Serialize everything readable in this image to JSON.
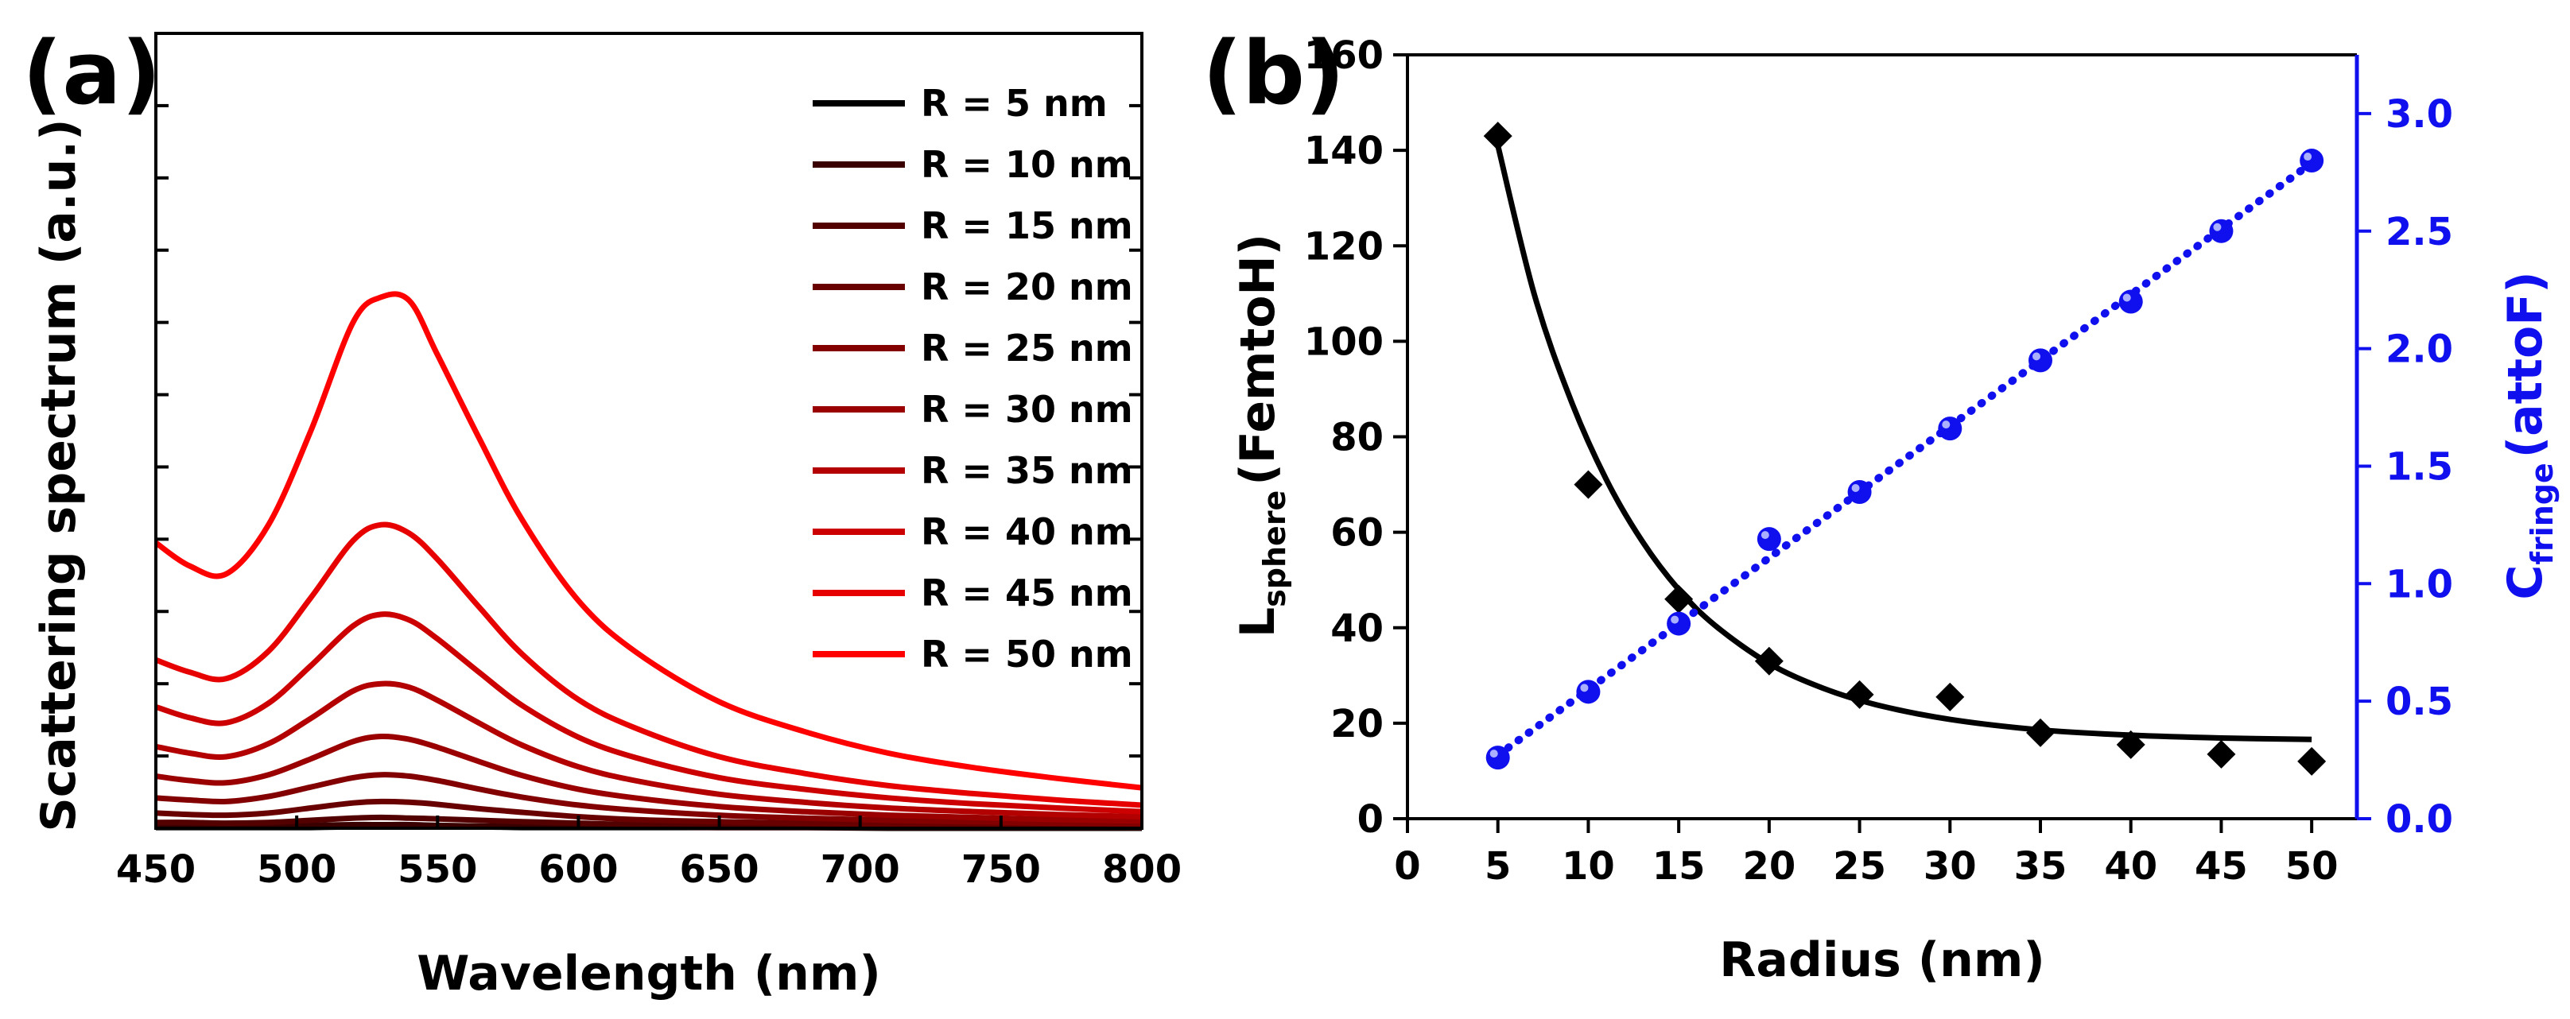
{
  "chart_data": [
    {
      "panel": "(a)",
      "type": "line",
      "title": "",
      "xlabel": "Wavelength (nm)",
      "ylabel": "Scattering spectrum (a.u.)",
      "xlim": [
        450,
        800
      ],
      "ylim": [
        0,
        110
      ],
      "xticks": [
        450,
        500,
        550,
        600,
        650,
        700,
        750,
        800
      ],
      "yticks_unlabeled": [
        10,
        20,
        30,
        40,
        50,
        60,
        70,
        80,
        90,
        100,
        110
      ],
      "x": [
        450,
        462,
        475,
        490,
        505,
        520,
        530,
        540,
        550,
        565,
        580,
        600,
        620,
        650,
        680,
        710,
        740,
        770,
        800
      ],
      "legend_position": "top-right",
      "series": [
        {
          "name": "R = 5 nm",
          "color": "#000000",
          "peak_x": 520,
          "values": [
            0.1,
            0.1,
            0.1,
            0.1,
            0.1,
            0.2,
            0.2,
            0.2,
            0.2,
            0.2,
            0.1,
            0.1,
            0.1,
            0.1,
            0.1,
            0.0,
            0.0,
            0.0,
            0.0
          ]
        },
        {
          "name": "R = 10 nm",
          "color": "#3a0000",
          "peak_x": 520,
          "values": [
            0.3,
            0.3,
            0.2,
            0.3,
            0.4,
            0.5,
            0.5,
            0.5,
            0.4,
            0.3,
            0.3,
            0.2,
            0.2,
            0.1,
            0.1,
            0.1,
            0.1,
            0.1,
            0.1
          ]
        },
        {
          "name": "R = 15 nm",
          "color": "#520000",
          "peak_x": 522,
          "values": [
            0.8,
            0.8,
            0.7,
            0.8,
            1.1,
            1.4,
            1.5,
            1.4,
            1.3,
            1.1,
            0.9,
            0.7,
            0.5,
            0.4,
            0.3,
            0.2,
            0.2,
            0.2,
            0.1
          ]
        },
        {
          "name": "R = 20 nm",
          "color": "#680000",
          "peak_x": 524,
          "values": [
            2.1,
            1.9,
            1.8,
            2.1,
            2.8,
            3.5,
            3.7,
            3.6,
            3.3,
            2.7,
            2.2,
            1.6,
            1.2,
            0.9,
            0.7,
            0.5,
            0.4,
            0.3,
            0.3
          ]
        },
        {
          "name": "R = 25 nm",
          "color": "#820000",
          "peak_x": 525,
          "values": [
            4.2,
            3.9,
            3.7,
            4.4,
            5.7,
            7.0,
            7.4,
            7.2,
            6.6,
            5.4,
            4.3,
            3.2,
            2.5,
            1.8,
            1.4,
            1.1,
            0.9,
            0.7,
            0.6
          ]
        },
        {
          "name": "R = 30 nm",
          "color": "#9a0000",
          "peak_x": 526,
          "values": [
            7.2,
            6.6,
            6.3,
            7.4,
            9.6,
            12.0,
            12.7,
            12.3,
            11.2,
            9.2,
            7.3,
            5.4,
            4.2,
            3.0,
            2.3,
            1.8,
            1.5,
            1.2,
            1.0
          ]
        },
        {
          "name": "R = 35 nm",
          "color": "#b30000",
          "peak_x": 527,
          "values": [
            11.3,
            10.4,
            9.9,
            11.7,
            15.2,
            19.0,
            20.0,
            19.5,
            17.7,
            14.5,
            11.5,
            8.5,
            6.6,
            4.7,
            3.6,
            2.8,
            2.3,
            1.9,
            1.6
          ]
        },
        {
          "name": "R = 40 nm",
          "color": "#cc0000",
          "peak_x": 528,
          "values": [
            16.8,
            15.3,
            14.6,
            17.3,
            22.5,
            28.0,
            29.6,
            28.8,
            26.2,
            21.5,
            17.0,
            12.6,
            9.8,
            7.0,
            5.4,
            4.2,
            3.4,
            2.8,
            2.3
          ]
        },
        {
          "name": "R = 45 nm",
          "color": "#e60000",
          "peak_x": 530,
          "values": [
            23.3,
            21.6,
            20.7,
            24.5,
            31.9,
            39.8,
            42.0,
            40.8,
            37.2,
            30.5,
            24.1,
            17.8,
            13.9,
            9.9,
            7.6,
            5.9,
            4.8,
            3.9,
            3.2
          ]
        },
        {
          "name": "R = 50 nm",
          "color": "#ff0000",
          "peak_x": 533,
          "values": [
            39.5,
            36.3,
            35.2,
            42.0,
            55.0,
            70.0,
            73.5,
            73.0,
            65.5,
            53.8,
            42.7,
            31.5,
            24.5,
            17.5,
            13.4,
            10.4,
            8.4,
            6.9,
            5.6
          ]
        }
      ]
    },
    {
      "panel": "(b)",
      "type": "scatter",
      "title": "",
      "xlabel": "Radius (nm)",
      "xlim": [
        0,
        52.5
      ],
      "xticks": [
        0,
        5,
        10,
        15,
        20,
        25,
        30,
        35,
        40,
        45,
        50
      ],
      "left_axis": {
        "label_main": "L",
        "label_sub": "sphere",
        "label_unit": "(FemtoH)",
        "ylim": [
          0,
          160
        ],
        "yticks": [
          0,
          20,
          40,
          60,
          80,
          100,
          120,
          140,
          160
        ],
        "color": "#000000"
      },
      "right_axis": {
        "label_main": "C",
        "label_sub": "fringe",
        "label_unit": "(attoF)",
        "ylim": [
          0,
          3.25
        ],
        "yticks": [
          "0.0",
          "0.5",
          "1.0",
          "1.5",
          "2.0",
          "2.5",
          "3.0"
        ],
        "color": "#1010ee"
      },
      "series": [
        {
          "name": "L_sphere",
          "axis": "left",
          "marker": "diamond",
          "color": "#000000",
          "x": [
            5,
            10,
            15,
            20,
            25,
            30,
            35,
            40,
            45,
            50
          ],
          "values": [
            143,
            70,
            46,
            33,
            26,
            25.5,
            18,
            15.5,
            13.5,
            12
          ],
          "fit": {
            "style": "solid",
            "x": [
              5,
              7,
              9,
              11,
              13,
              15,
              17,
              20,
              23,
              26,
              30,
              35,
              40,
              45,
              50
            ],
            "values": [
              141,
              110,
              88,
              71,
              58,
              48,
              40.5,
              32.5,
              27.3,
              23.8,
              20.8,
              18.6,
              17.5,
              16.9,
              16.6
            ]
          }
        },
        {
          "name": "C_fringe",
          "axis": "right",
          "marker": "circle",
          "color": "#1010ee",
          "x": [
            5,
            10,
            15,
            20,
            25,
            30,
            35,
            40,
            45,
            50
          ],
          "values": [
            0.26,
            0.54,
            0.83,
            1.19,
            1.39,
            1.66,
            1.95,
            2.2,
            2.5,
            2.8
          ],
          "fit": {
            "style": "dotted",
            "x": [
              5,
              50
            ],
            "values": [
              0.27,
              2.79
            ]
          }
        }
      ]
    }
  ]
}
